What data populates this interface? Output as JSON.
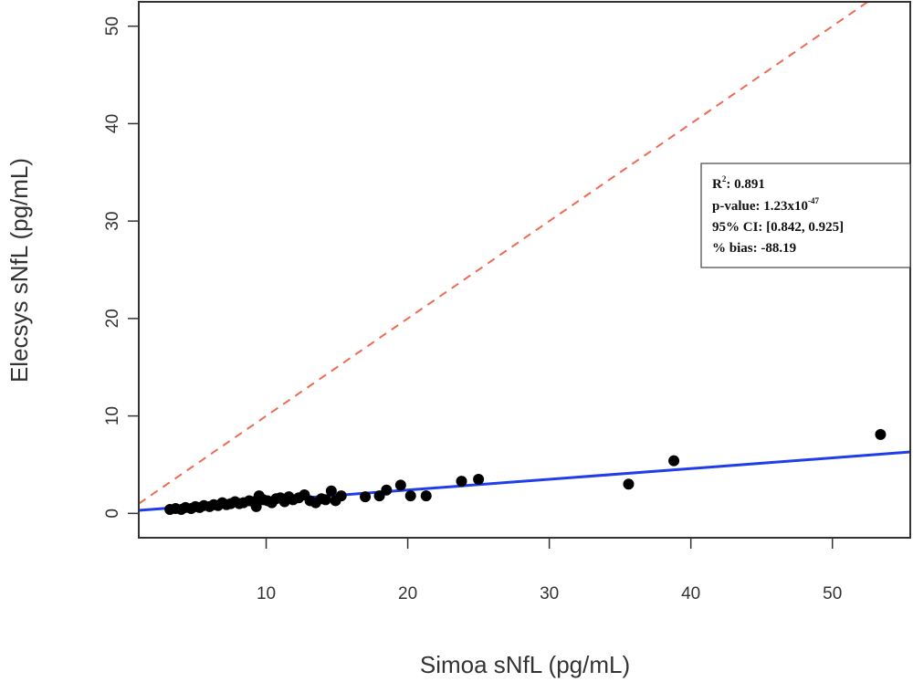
{
  "chart_data": {
    "type": "scatter",
    "title": "",
    "xlabel": "Simoa sNfL (pg/mL)",
    "ylabel": "Elecsys sNfL (pg/mL)",
    "xlim": [
      1,
      55.5
    ],
    "ylim": [
      -2.5,
      52.5
    ],
    "xticks": [
      "10",
      "20",
      "30",
      "40",
      "50"
    ],
    "yticks": [
      "0",
      "10",
      "20",
      "30",
      "40",
      "50"
    ],
    "grid": false,
    "points": [
      [
        3.2,
        0.4
      ],
      [
        3.6,
        0.5
      ],
      [
        4.0,
        0.4
      ],
      [
        4.3,
        0.6
      ],
      [
        4.7,
        0.5
      ],
      [
        5.0,
        0.7
      ],
      [
        5.3,
        0.6
      ],
      [
        5.6,
        0.8
      ],
      [
        6.0,
        0.7
      ],
      [
        6.3,
        0.9
      ],
      [
        6.6,
        0.8
      ],
      [
        6.9,
        1.1
      ],
      [
        7.2,
        0.9
      ],
      [
        7.5,
        1.0
      ],
      [
        7.8,
        1.2
      ],
      [
        8.1,
        1.0
      ],
      [
        8.4,
        1.1
      ],
      [
        8.8,
        1.3
      ],
      [
        9.1,
        1.2
      ],
      [
        9.3,
        0.7
      ],
      [
        9.5,
        1.8
      ],
      [
        9.8,
        1.4
      ],
      [
        10.1,
        1.3
      ],
      [
        10.4,
        1.1
      ],
      [
        10.7,
        1.5
      ],
      [
        11.0,
        1.6
      ],
      [
        11.3,
        1.2
      ],
      [
        11.6,
        1.7
      ],
      [
        11.9,
        1.4
      ],
      [
        12.3,
        1.6
      ],
      [
        12.7,
        1.9
      ],
      [
        13.1,
        1.3
      ],
      [
        13.5,
        1.1
      ],
      [
        13.9,
        1.5
      ],
      [
        14.2,
        1.4
      ],
      [
        14.6,
        2.3
      ],
      [
        14.9,
        1.3
      ],
      [
        15.3,
        1.8
      ],
      [
        17.0,
        1.7
      ],
      [
        18.0,
        1.8
      ],
      [
        18.5,
        2.4
      ],
      [
        19.5,
        2.9
      ],
      [
        20.2,
        1.8
      ],
      [
        21.3,
        1.8
      ],
      [
        23.8,
        3.3
      ],
      [
        25.0,
        3.5
      ],
      [
        35.6,
        3.0
      ],
      [
        38.8,
        5.4
      ],
      [
        53.4,
        8.1
      ]
    ],
    "fit_line": {
      "intercept": 0.2,
      "slope": 0.11,
      "color": "#1f3ee8"
    },
    "identity_line": {
      "intercept": 0,
      "slope": 1,
      "style": "dashed",
      "color": "#ef6a55"
    },
    "point_color": "#000000",
    "legend_position": "top-right",
    "annotation": {
      "r2_label": "R",
      "r2_sup": "2",
      "r2_value": ": 0.891",
      "p_label": "p-value: 1.23x10",
      "p_sup": "-47",
      "ci": "95% CI: [0.842, 0.925]",
      "bias": "% bias: -88.19"
    }
  }
}
